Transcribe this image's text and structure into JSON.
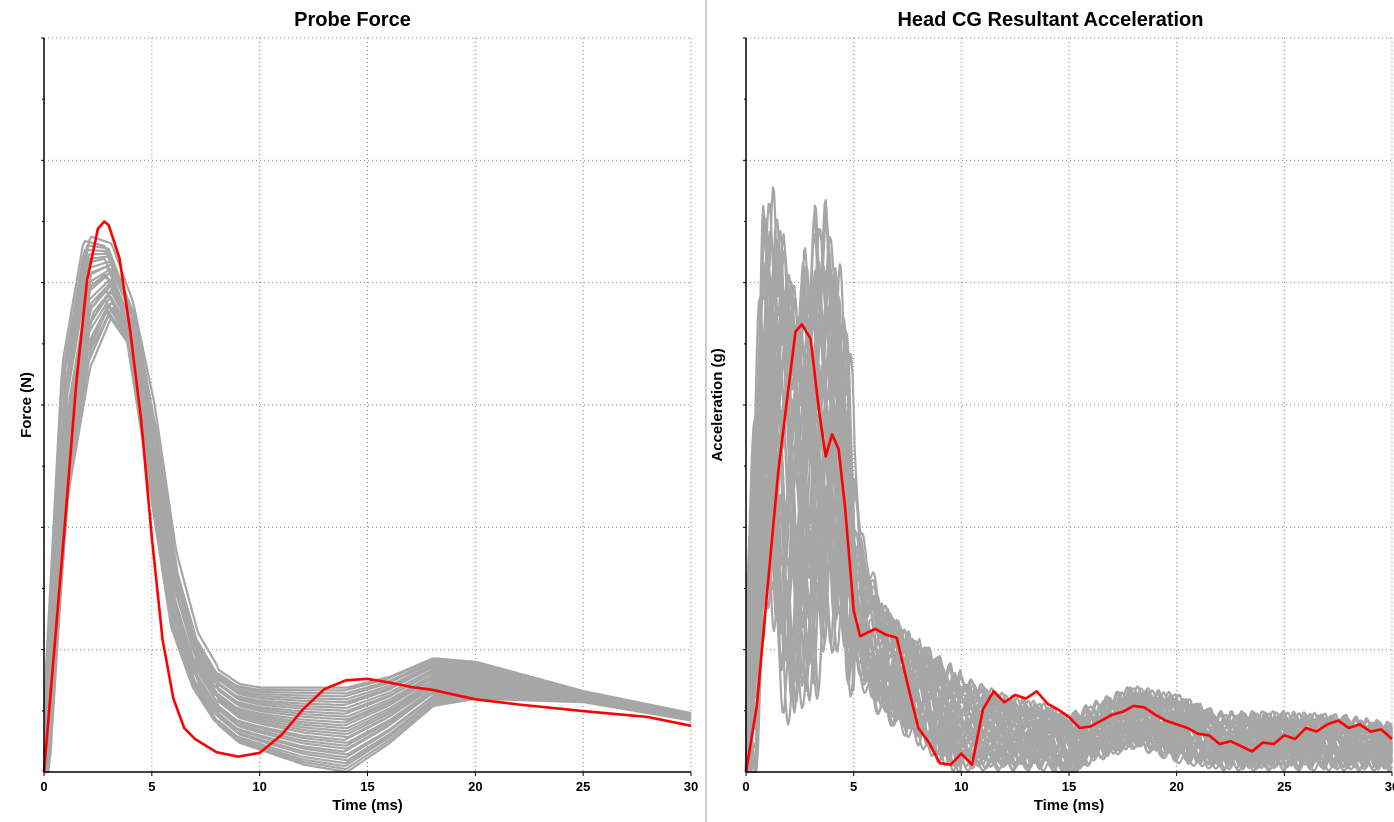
{
  "colors": {
    "background": "#ffffff",
    "grid": "#808080",
    "axis": "#000000",
    "band": "#a6a6a6",
    "highlight": "#ff0000"
  },
  "chart_data": [
    {
      "type": "line",
      "title": "Probe Force",
      "xlabel": "Time (ms)",
      "ylabel": "Force (N)",
      "xlim": [
        0,
        30
      ],
      "ylim": [
        0,
        1
      ],
      "xticks": [
        0,
        5,
        10,
        15,
        20,
        25,
        30
      ],
      "y_tick_labels_shown": false,
      "grid": true,
      "grid_style": "dotted",
      "series": [
        {
          "role": "reference-band",
          "color": "#a6a6a6",
          "x": [
            0,
            1,
            2,
            3,
            4,
            5,
            6,
            7,
            8,
            9,
            10,
            12,
            14,
            16,
            18,
            20,
            25,
            30
          ],
          "upper": [
            0,
            0.56,
            0.73,
            0.72,
            0.64,
            0.5,
            0.3,
            0.19,
            0.14,
            0.12,
            0.115,
            0.115,
            0.115,
            0.13,
            0.155,
            0.15,
            0.11,
            0.08
          ],
          "lower": [
            0,
            0.38,
            0.55,
            0.62,
            0.58,
            0.38,
            0.19,
            0.11,
            0.065,
            0.04,
            0.03,
            0.01,
            0.0,
            0.04,
            0.09,
            0.1,
            0.095,
            0.07
          ],
          "mid": [
            0,
            0.47,
            0.64,
            0.67,
            0.61,
            0.44,
            0.245,
            0.15,
            0.1,
            0.08,
            0.072,
            0.062,
            0.055,
            0.085,
            0.12,
            0.125,
            0.1,
            0.075
          ]
        },
        {
          "role": "highlight",
          "color": "#ff0000",
          "x": [
            0,
            1,
            1.5,
            2,
            2.5,
            2.8,
            3,
            3.5,
            4,
            4.5,
            5,
            5.5,
            6,
            6.5,
            7,
            8,
            9,
            10,
            11,
            12,
            13,
            14,
            15,
            16,
            17,
            18,
            20,
            22,
            25,
            28,
            30
          ],
          "y": [
            0,
            0.35,
            0.53,
            0.67,
            0.74,
            0.75,
            0.745,
            0.7,
            0.6,
            0.48,
            0.32,
            0.18,
            0.1,
            0.06,
            0.045,
            0.027,
            0.021,
            0.026,
            0.05,
            0.085,
            0.113,
            0.125,
            0.127,
            0.122,
            0.116,
            0.112,
            0.099,
            0.092,
            0.083,
            0.075,
            0.063
          ]
        }
      ]
    },
    {
      "type": "line",
      "title": "Head CG Resultant Acceleration",
      "xlabel": "Time (ms)",
      "ylabel": "Acceleration (g)",
      "xlim": [
        0,
        30
      ],
      "ylim": [
        0,
        1
      ],
      "xticks": [
        0,
        5,
        10,
        15,
        20,
        25,
        30
      ],
      "y_tick_labels_shown": false,
      "grid": true,
      "grid_style": "dotted",
      "series": [
        {
          "role": "reference-band",
          "color": "#a6a6a6",
          "x": [
            0,
            0.5,
            1,
            1.5,
            2,
            2.5,
            3,
            3.5,
            4,
            4.5,
            5,
            6,
            7,
            8,
            9,
            10,
            12,
            14,
            15,
            16,
            18,
            20,
            22,
            25,
            28,
            30
          ],
          "upper": [
            0,
            0.35,
            0.71,
            0.74,
            0.67,
            0.6,
            0.66,
            0.72,
            0.72,
            0.6,
            0.35,
            0.24,
            0.2,
            0.17,
            0.145,
            0.125,
            0.1,
            0.085,
            0.07,
            0.085,
            0.11,
            0.1,
            0.075,
            0.075,
            0.07,
            0.06
          ],
          "lower": [
            0,
            0.18,
            0.38,
            0.16,
            0.1,
            0.15,
            0.14,
            0.2,
            0.23,
            0.2,
            0.15,
            0.095,
            0.07,
            0.05,
            0.025,
            0.01,
            0.01,
            0.01,
            0.0,
            0.02,
            0.04,
            0.02,
            0.01,
            0.01,
            0.01,
            0.01
          ],
          "mid": [
            0,
            0.28,
            0.55,
            0.5,
            0.42,
            0.38,
            0.42,
            0.5,
            0.48,
            0.42,
            0.26,
            0.16,
            0.13,
            0.11,
            0.09,
            0.07,
            0.06,
            0.045,
            0.035,
            0.05,
            0.075,
            0.055,
            0.04,
            0.04,
            0.04,
            0.035
          ]
        },
        {
          "role": "highlight",
          "color": "#ff0000",
          "x": [
            0,
            0.5,
            1,
            1.5,
            2,
            2.3,
            2.6,
            3,
            3.4,
            3.7,
            4,
            4.3,
            4.6,
            5,
            5.3,
            6,
            6.5,
            7,
            7.5,
            8,
            8.5,
            9,
            9.5,
            10,
            10.5,
            11,
            11.5,
            12,
            12.5,
            13,
            13.5,
            14,
            14.5,
            15,
            15.5,
            16,
            16.5,
            17,
            17.5,
            18,
            18.5,
            19,
            19.5,
            20,
            20.5,
            21,
            21.5,
            22,
            22.5,
            23,
            23.5,
            24,
            24.5,
            25,
            25.5,
            26,
            26.5,
            27,
            27.5,
            28,
            28.5,
            29,
            29.5,
            30
          ],
          "y": [
            0,
            0.09,
            0.25,
            0.41,
            0.53,
            0.6,
            0.61,
            0.59,
            0.49,
            0.43,
            0.46,
            0.44,
            0.36,
            0.22,
            0.185,
            0.195,
            0.187,
            0.183,
            0.12,
            0.06,
            0.04,
            0.012,
            0.01,
            0.025,
            0.01,
            0.085,
            0.11,
            0.095,
            0.105,
            0.1,
            0.11,
            0.093,
            0.085,
            0.075,
            0.06,
            0.062,
            0.07,
            0.078,
            0.082,
            0.09,
            0.088,
            0.078,
            0.07,
            0.065,
            0.06,
            0.052,
            0.05,
            0.038,
            0.042,
            0.035,
            0.028,
            0.04,
            0.038,
            0.05,
            0.045,
            0.06,
            0.055,
            0.065,
            0.07,
            0.06,
            0.065,
            0.055,
            0.058,
            0.045
          ]
        }
      ]
    }
  ]
}
